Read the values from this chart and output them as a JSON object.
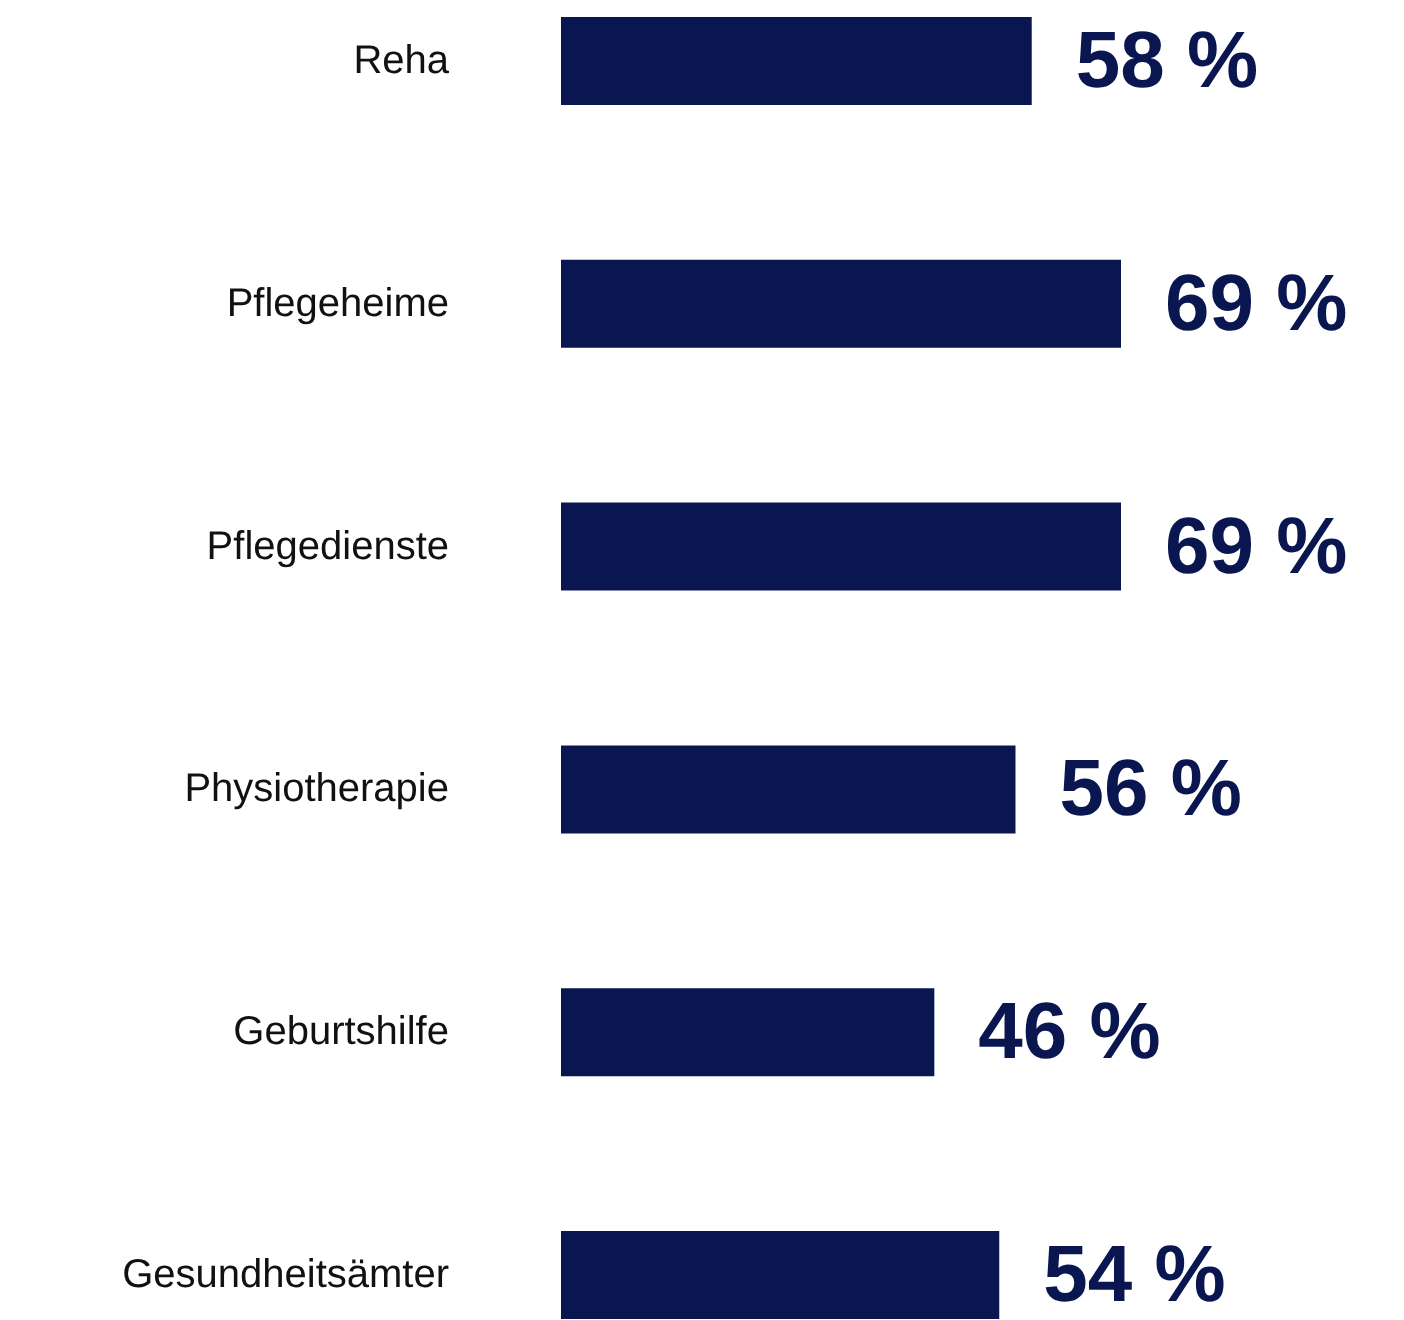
{
  "chart_data": {
    "type": "bar",
    "orientation": "horizontal",
    "categories": [
      "Reha",
      "Pflegeheime",
      "Pflegedienste",
      "Physiotherapie",
      "Geburtshilfe",
      "Gesundheitsämter"
    ],
    "values": [
      58,
      69,
      69,
      56,
      46,
      54
    ],
    "value_labels": [
      "58 %",
      "69 %",
      "69 %",
      "56 %",
      "46 %",
      "54 %"
    ],
    "color": "#0a1650"
  }
}
